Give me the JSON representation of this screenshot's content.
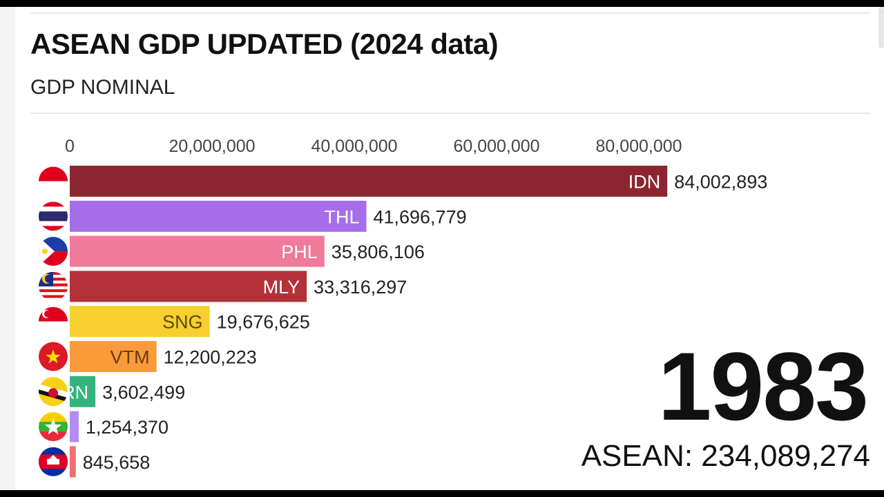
{
  "header": {
    "title": "ASEAN GDP UPDATED (2024 data)",
    "subtitle": "GDP NOMINAL"
  },
  "counter": {
    "year": "1983",
    "total_label": "ASEAN: 234,089,274"
  },
  "chart_data": {
    "type": "bar",
    "orientation": "horizontal",
    "xlim": [
      0,
      100000000
    ],
    "x_ticks": [
      0,
      20000000,
      40000000,
      60000000,
      80000000
    ],
    "x_tick_labels": [
      "0",
      "20,000,000",
      "40,000,000",
      "60,000,000",
      "80,000,000"
    ],
    "categories": [
      "IDN",
      "THL",
      "PHL",
      "MLY",
      "SNG",
      "VTM",
      "BRN",
      "MMR",
      "KHM"
    ],
    "bar_labels": [
      "IDN",
      "THL",
      "PHL",
      "MLY",
      "SNG",
      "VTM",
      "RN",
      "",
      ""
    ],
    "values": [
      84002893,
      41696779,
      35806106,
      33316297,
      19676625,
      12200223,
      3602499,
      1254370,
      845658
    ],
    "value_labels": [
      "84,002,893",
      "41,696,779",
      "35,806,106",
      "33,316,297",
      "19,676,625",
      "12,200,223",
      "3,602,499",
      "1,254,370",
      "845,658"
    ],
    "colors": [
      "#8b2630",
      "#a66ee8",
      "#f07a9a",
      "#b3323a",
      "#f7cf2e",
      "#fb9a3a",
      "#35b37e",
      "#b48cf2",
      "#f07070"
    ],
    "flags": [
      "indonesia-flag",
      "thailand-flag",
      "philippines-flag",
      "malaysia-flag",
      "singapore-flag",
      "vietnam-flag",
      "brunei-flag",
      "myanmar-flag",
      "cambodia-flag"
    ],
    "label_colors": [
      "#ffffff",
      "#ffffff",
      "#ffffff",
      "#ffffff",
      "#5a4a10",
      "#6a3a10",
      "#ffffff",
      "#ffffff",
      "#ffffff"
    ]
  }
}
